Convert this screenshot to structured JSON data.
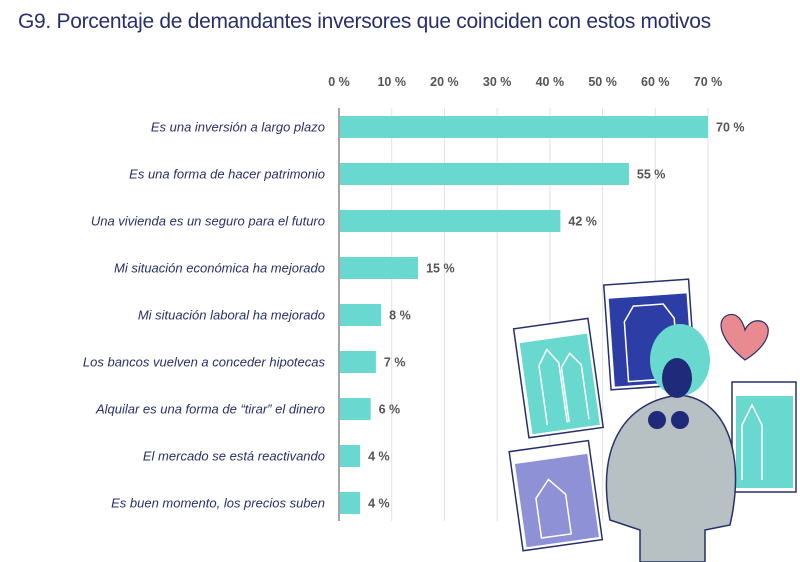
{
  "title": "G9. Porcentaje de demandantes inversores que coinciden con estos motivos",
  "chart_data": {
    "type": "bar",
    "orientation": "horizontal",
    "title": "G9. Porcentaje de demandantes inversores que coinciden con estos motivos",
    "categories": [
      "Es una inversión a largo plazo",
      "Es una forma de hacer patrimonio",
      "Una vivienda es un seguro para el futuro",
      "Mi situación económica ha mejorado",
      "Mi situación laboral ha mejorado",
      "Los bancos vuelven a conceder hipotecas",
      "Alquilar es una forma de “tirar” el dinero",
      "El mercado se está reactivando",
      "Es buen momento, los  precios suben"
    ],
    "values": [
      70,
      55,
      42,
      15,
      8,
      7,
      6,
      4,
      4
    ],
    "value_labels": [
      "70 %",
      "55 %",
      "42 %",
      "15 %",
      "8 %",
      "7 %",
      "6 %",
      "4 %",
      "4 %"
    ],
    "xlim": [
      0,
      70
    ],
    "ticks": [
      "0 %",
      "10 %",
      "20 %",
      "30 %",
      "40 %",
      "50 %",
      "60 %",
      "70 %"
    ],
    "tick_values": [
      0,
      10,
      20,
      30,
      40,
      50,
      60,
      70
    ],
    "xaxis_position": "top",
    "grid": true,
    "bar_color": "#69d9cf",
    "text_color": "#27306b"
  },
  "illustration": "woman-with-house-listings-illustration"
}
